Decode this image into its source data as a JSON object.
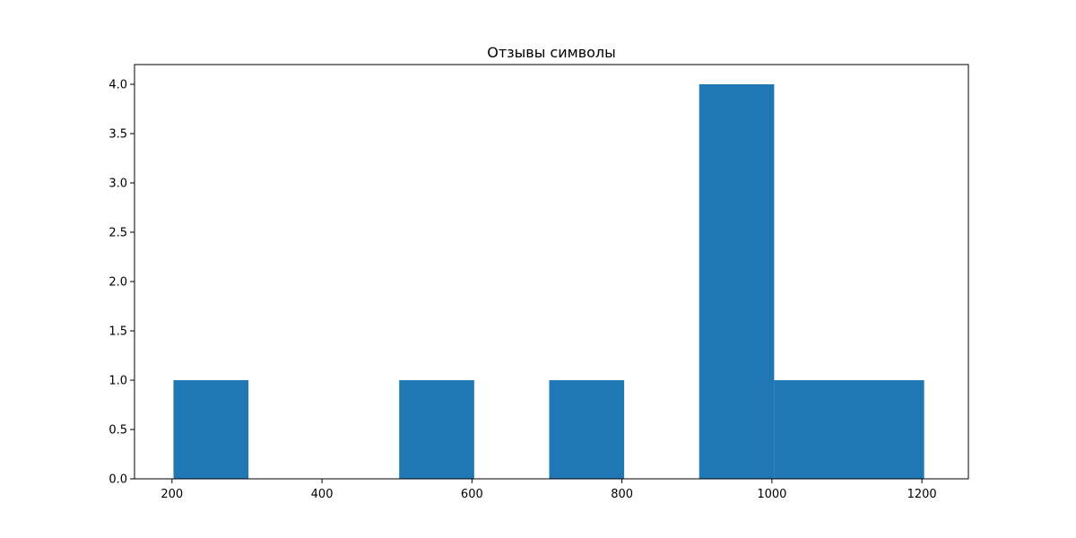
{
  "chart_data": {
    "type": "bar",
    "title": "Отзывы символы",
    "xlabel": "",
    "ylabel": "",
    "xlim": [
      150,
      1262
    ],
    "ylim": [
      0,
      4.2
    ],
    "x_ticks": [
      200,
      400,
      600,
      800,
      1000,
      1200
    ],
    "x_tick_labels": [
      "200",
      "400",
      "600",
      "800",
      "1000",
      "1200"
    ],
    "y_ticks": [
      0,
      0.5,
      1,
      1.5,
      2,
      2.5,
      3,
      3.5,
      4
    ],
    "y_tick_labels": [
      "0.0",
      "0.5",
      "1.0",
      "1.5",
      "2.0",
      "2.5",
      "3.0",
      "3.5",
      "4.0"
    ],
    "bins": [
      {
        "start": 202,
        "end": 302,
        "count": 1
      },
      {
        "start": 302,
        "end": 402,
        "count": 0
      },
      {
        "start": 402,
        "end": 503,
        "count": 0
      },
      {
        "start": 503,
        "end": 603,
        "count": 1
      },
      {
        "start": 603,
        "end": 703,
        "count": 0
      },
      {
        "start": 703,
        "end": 803,
        "count": 1
      },
      {
        "start": 803,
        "end": 903,
        "count": 0
      },
      {
        "start": 903,
        "end": 1003,
        "count": 4
      },
      {
        "start": 1003,
        "end": 1103,
        "count": 1
      },
      {
        "start": 1103,
        "end": 1203,
        "count": 1
      }
    ],
    "bar_color": "#1f77b4",
    "grid": false,
    "legend": "none"
  }
}
